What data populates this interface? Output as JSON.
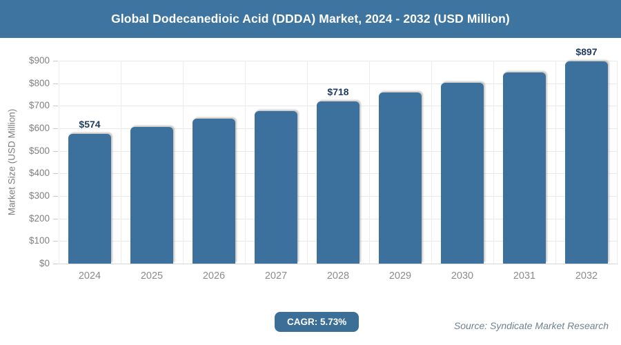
{
  "header": {
    "title": "Global Dodecanedioic Acid (DDDA) Market, 2024 - 2032 (USD Million)"
  },
  "colors": {
    "header_bg": "#3e74a0",
    "bar_fill": "#3b719c",
    "bar_label_text": "#1e3a5f",
    "axis_text": "#808080",
    "gridline": "#e9e9e9",
    "badge_bg": "#3b6f97",
    "source_text": "#6e8290",
    "header_text": "#ffffff"
  },
  "chart_data": {
    "type": "bar",
    "title": "Global Dodecanedioic Acid (DDDA) Market, 2024 - 2032 (USD Million)",
    "categories": [
      "2024",
      "2025",
      "2026",
      "2027",
      "2028",
      "2029",
      "2030",
      "2031",
      "2032"
    ],
    "values": [
      574,
      607,
      642,
      678,
      718,
      759,
      803,
      849,
      897
    ],
    "data_labels": [
      "$574",
      "",
      "",
      "",
      "$718",
      "",
      "",
      "",
      "$897"
    ],
    "xlabel": "",
    "ylabel": "Market Size (USD Million)",
    "ylim": [
      0,
      900
    ],
    "ytick_step": 100,
    "ytick_labels": [
      "$0",
      "$100",
      "$200",
      "$300",
      "$400",
      "$500",
      "$600",
      "$700",
      "$800",
      "$900"
    ],
    "grid": "horizontal-and-vertical",
    "legend": "none"
  },
  "footer": {
    "cagr_label": "CAGR: 5.73%",
    "source": "Source: Syndicate Market Research"
  }
}
